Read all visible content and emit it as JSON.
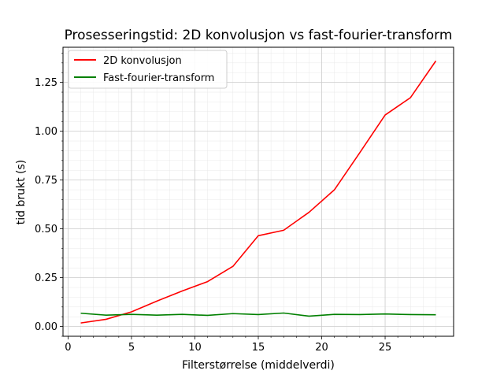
{
  "chart_data": {
    "type": "line",
    "title": "Prosesseringstid: 2D konvolusjon vs fast-fourier-transform",
    "xlabel": "Filterstørrelse (middelverdi)",
    "ylabel": "tid brukt (s)",
    "xlim": [
      -0.4,
      30.4
    ],
    "ylim": [
      -0.05,
      1.43
    ],
    "xticks": [
      0,
      5,
      10,
      15,
      20,
      25
    ],
    "xtick_labels": [
      "0",
      "5",
      "10",
      "15",
      "20",
      "25"
    ],
    "yticks": [
      0,
      0.25,
      0.5,
      0.75,
      1.0,
      1.25
    ],
    "ytick_labels": [
      "0.00",
      "0.25",
      "0.50",
      "0.75",
      "1.00",
      "1.25"
    ],
    "grid": true,
    "minor_grid": true,
    "legend_position": "top-left",
    "x": [
      1,
      3,
      5,
      7,
      9,
      11,
      13,
      15,
      17,
      19,
      21,
      23,
      25,
      27,
      29
    ],
    "series": [
      {
        "name": "2D konvolusjon",
        "color": "#ff0000",
        "values": [
          0.018,
          0.037,
          0.075,
          0.13,
          0.182,
          0.23,
          0.308,
          0.465,
          0.493,
          0.585,
          0.7,
          0.89,
          1.083,
          1.172,
          1.36
        ]
      },
      {
        "name": "Fast-fourier-transform",
        "color": "#008000",
        "values": [
          0.068,
          0.058,
          0.062,
          0.058,
          0.062,
          0.057,
          0.066,
          0.061,
          0.069,
          0.053,
          0.062,
          0.061,
          0.064,
          0.061,
          0.06
        ]
      }
    ]
  }
}
